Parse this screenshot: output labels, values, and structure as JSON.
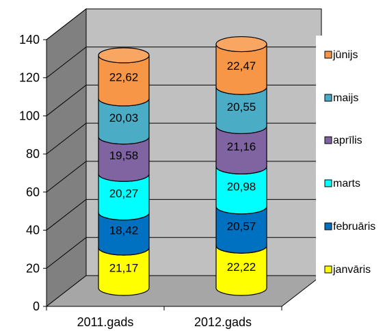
{
  "chart_data": {
    "type": "bar",
    "stacked": true,
    "style": "3d-cylinder",
    "categories": [
      "2011.gads",
      "2012.gads"
    ],
    "series": [
      {
        "name": "janvāris",
        "values": [
          21.17,
          22.22
        ],
        "labels": [
          "21,17",
          "22,22"
        ],
        "color": "#ffff00"
      },
      {
        "name": "februāris",
        "values": [
          18.42,
          20.57
        ],
        "labels": [
          "18,42",
          "20,57"
        ],
        "color": "#0070c0"
      },
      {
        "name": "marts",
        "values": [
          20.27,
          20.98
        ],
        "labels": [
          "20,27",
          "20,98"
        ],
        "color": "#00ffff"
      },
      {
        "name": "aprīlis",
        "values": [
          19.58,
          21.16
        ],
        "labels": [
          "19,58",
          "21,16"
        ],
        "color": "#8064a2"
      },
      {
        "name": "maijs",
        "values": [
          20.03,
          20.55
        ],
        "labels": [
          "20,03",
          "20,55"
        ],
        "color": "#4bacc6"
      },
      {
        "name": "jūnijs",
        "values": [
          22.62,
          22.47
        ],
        "labels": [
          "22,62",
          "22,47"
        ],
        "color": "#f79646"
      }
    ],
    "yticks": [
      0,
      20,
      40,
      60,
      80,
      100,
      120,
      140
    ],
    "ylim": [
      0,
      140
    ],
    "grid": true,
    "legend": "right",
    "wall_color": "#c0c0c0",
    "floor_color": "#a6a6a6"
  }
}
